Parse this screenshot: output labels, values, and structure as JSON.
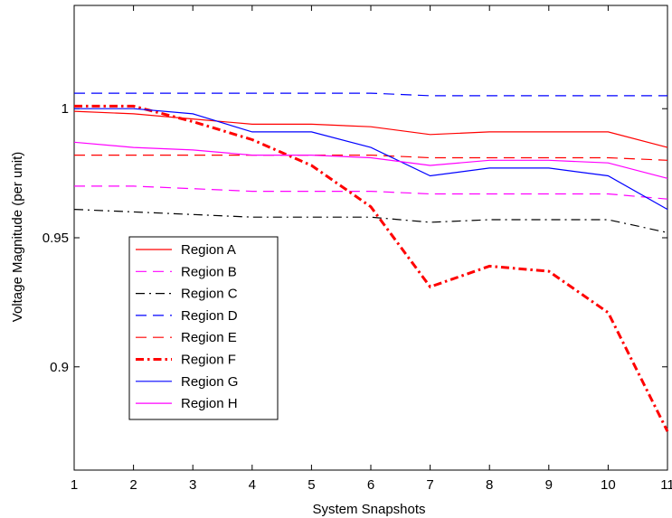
{
  "chart_data": {
    "type": "line",
    "title": "",
    "xlabel": "System Snapshots",
    "ylabel": "Voltage Magnitude (per unit)",
    "xlim": [
      1,
      11
    ],
    "ylim": [
      0.86,
      1.04
    ],
    "x": [
      1,
      2,
      3,
      4,
      5,
      6,
      7,
      8,
      9,
      10,
      11
    ],
    "xticks": [
      "1",
      "2",
      "3",
      "4",
      "5",
      "6",
      "7",
      "8",
      "9",
      "10",
      "11"
    ],
    "yticks": [
      {
        "value": 0.9,
        "label": "0.9"
      },
      {
        "value": 0.95,
        "label": "0.95"
      },
      {
        "value": 1.0,
        "label": "1"
      }
    ],
    "legend_position": "left",
    "series": [
      {
        "name": "Region A",
        "color": "#ff0000",
        "style": "solid",
        "values": [
          0.999,
          0.998,
          0.996,
          0.994,
          0.994,
          0.993,
          0.99,
          0.991,
          0.991,
          0.991,
          0.985
        ]
      },
      {
        "name": "Region B",
        "color": "#ff00ff",
        "style": "dashed",
        "values": [
          0.97,
          0.97,
          0.969,
          0.968,
          0.968,
          0.968,
          0.967,
          0.967,
          0.967,
          0.967,
          0.965
        ]
      },
      {
        "name": "Region C",
        "color": "#000000",
        "style": "dashdot",
        "values": [
          0.961,
          0.96,
          0.959,
          0.958,
          0.958,
          0.958,
          0.956,
          0.957,
          0.957,
          0.957,
          0.952
        ]
      },
      {
        "name": "Region D",
        "color": "#0000ff",
        "style": "dashed",
        "values": [
          1.006,
          1.006,
          1.006,
          1.006,
          1.006,
          1.006,
          1.005,
          1.005,
          1.005,
          1.005,
          1.005
        ]
      },
      {
        "name": "Region E",
        "color": "#ff0000",
        "style": "dashed",
        "values": [
          0.982,
          0.982,
          0.982,
          0.982,
          0.982,
          0.982,
          0.981,
          0.981,
          0.981,
          0.981,
          0.98
        ]
      },
      {
        "name": "Region F",
        "color": "#ff0000",
        "style": "dashdot-bold",
        "values": [
          1.001,
          1.001,
          0.995,
          0.988,
          0.978,
          0.962,
          0.931,
          0.939,
          0.937,
          0.921,
          0.875
        ]
      },
      {
        "name": "Region G",
        "color": "#0000ff",
        "style": "solid",
        "values": [
          1.0,
          1.0,
          0.998,
          0.991,
          0.991,
          0.985,
          0.974,
          0.977,
          0.977,
          0.974,
          0.961
        ]
      },
      {
        "name": "Region H",
        "color": "#ff00ff",
        "style": "solid",
        "values": [
          0.987,
          0.985,
          0.984,
          0.982,
          0.982,
          0.981,
          0.978,
          0.98,
          0.98,
          0.979,
          0.973
        ]
      }
    ]
  }
}
